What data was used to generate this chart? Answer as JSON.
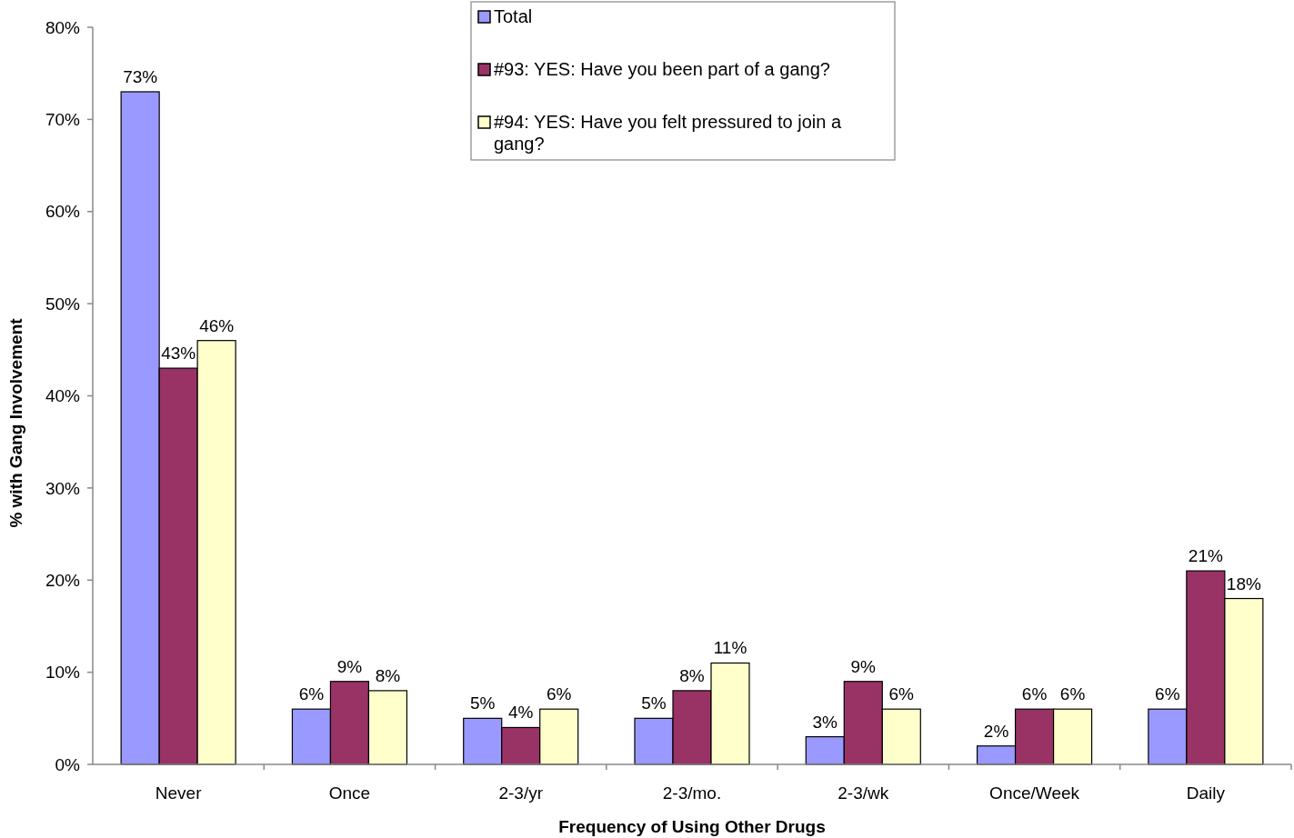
{
  "chart_data": {
    "type": "bar",
    "xlabel": "Frequency of Using Other Drugs",
    "ylabel": "% with Gang Involvement",
    "categories": [
      "Never",
      "Once",
      "2-3/yr",
      "2-3/mo.",
      "2-3/wk",
      "Once/Week",
      "Daily"
    ],
    "series": [
      {
        "name": "Total",
        "color": "#9999ff",
        "values": [
          73,
          6,
          5,
          5,
          3,
          2,
          6
        ],
        "value_labels": [
          "73%",
          "6%",
          "5%",
          "5%",
          "3%",
          "2%",
          "6%"
        ]
      },
      {
        "name": "#93: YES: Have you been part of a gang?",
        "color": "#993366",
        "values": [
          43,
          9,
          4,
          8,
          9,
          6,
          21
        ],
        "value_labels": [
          "43%",
          "9%",
          "4%",
          "8%",
          "9%",
          "6%",
          "21%"
        ]
      },
      {
        "name": "#94: YES: Have you felt pressured to join a gang?",
        "color": "#ffffcc",
        "values": [
          46,
          8,
          6,
          11,
          6,
          6,
          18
        ],
        "value_labels": [
          "46%",
          "8%",
          "6%",
          "11%",
          "6%",
          "6%",
          "18%"
        ]
      }
    ],
    "ylim": [
      0,
      80
    ],
    "yticks": [
      {
        "value": 0,
        "label": "0%"
      },
      {
        "value": 10,
        "label": "10%"
      },
      {
        "value": 20,
        "label": "20%"
      },
      {
        "value": 30,
        "label": "30%"
      },
      {
        "value": 40,
        "label": "40%"
      },
      {
        "value": 50,
        "label": "50%"
      },
      {
        "value": 60,
        "label": "60%"
      },
      {
        "value": 70,
        "label": "70%"
      },
      {
        "value": 80,
        "label": "80%"
      }
    ],
    "grid": false,
    "legend": "top"
  }
}
